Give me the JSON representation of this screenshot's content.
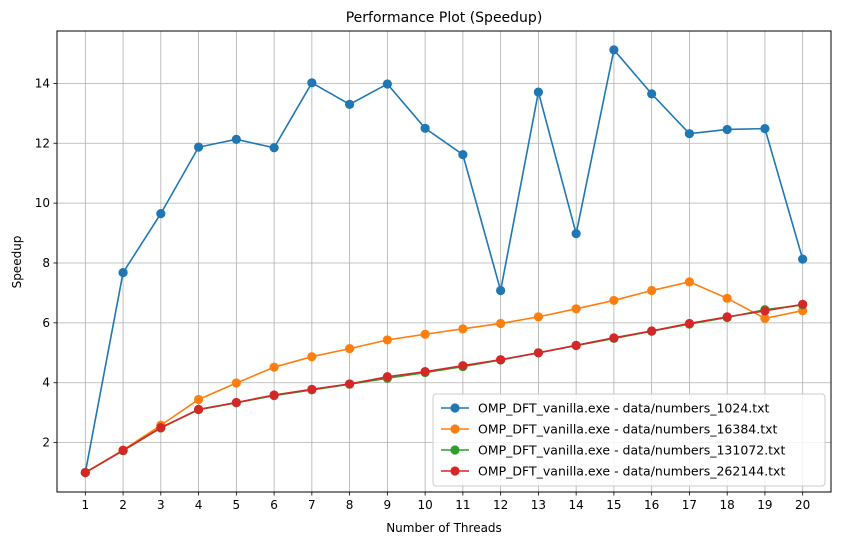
{
  "chart_data": {
    "type": "line",
    "title": "Performance Plot (Speedup)",
    "xlabel": "Number of Threads",
    "ylabel": "Speedup",
    "x": [
      1,
      2,
      3,
      4,
      5,
      6,
      7,
      8,
      9,
      10,
      11,
      12,
      13,
      14,
      15,
      16,
      17,
      18,
      19,
      20
    ],
    "xlim": [
      0.25,
      20.75
    ],
    "ylim": [
      0.35,
      15.75
    ],
    "yticks": [
      2,
      4,
      6,
      8,
      10,
      12,
      14
    ],
    "grid": true,
    "legend_position": "bottom-right",
    "series": [
      {
        "name": "OMP_DFT_vanilla.exe - data/numbers_1024.txt",
        "color": "#1f77b4",
        "values": [
          1.0,
          7.68,
          9.65,
          11.87,
          12.13,
          11.85,
          14.02,
          13.3,
          13.98,
          12.5,
          11.62,
          7.08,
          13.71,
          8.98,
          15.12,
          13.65,
          12.32,
          12.46,
          12.49,
          8.13
        ]
      },
      {
        "name": "OMP_DFT_vanilla.exe - data/numbers_16384.txt",
        "color": "#ff7f0e",
        "values": [
          1.0,
          1.75,
          2.58,
          3.44,
          3.99,
          4.52,
          4.87,
          5.14,
          5.43,
          5.62,
          5.8,
          5.98,
          6.2,
          6.47,
          6.75,
          7.08,
          7.37,
          6.82,
          6.15,
          6.41
        ]
      },
      {
        "name": "OMP_DFT_vanilla.exe - data/numbers_131072.txt",
        "color": "#2ca02c",
        "values": [
          1.0,
          1.73,
          2.49,
          3.1,
          3.33,
          3.57,
          3.76,
          3.95,
          4.15,
          4.34,
          4.54,
          4.76,
          5.0,
          5.24,
          5.48,
          5.72,
          5.96,
          6.18,
          6.44,
          6.6
        ]
      },
      {
        "name": "OMP_DFT_vanilla.exe - data/numbers_262144.txt",
        "color": "#d62728",
        "values": [
          1.0,
          1.74,
          2.5,
          3.11,
          3.34,
          3.59,
          3.78,
          3.96,
          4.2,
          4.37,
          4.57,
          4.77,
          5.0,
          5.25,
          5.5,
          5.73,
          5.98,
          6.2,
          6.4,
          6.62
        ]
      }
    ]
  }
}
